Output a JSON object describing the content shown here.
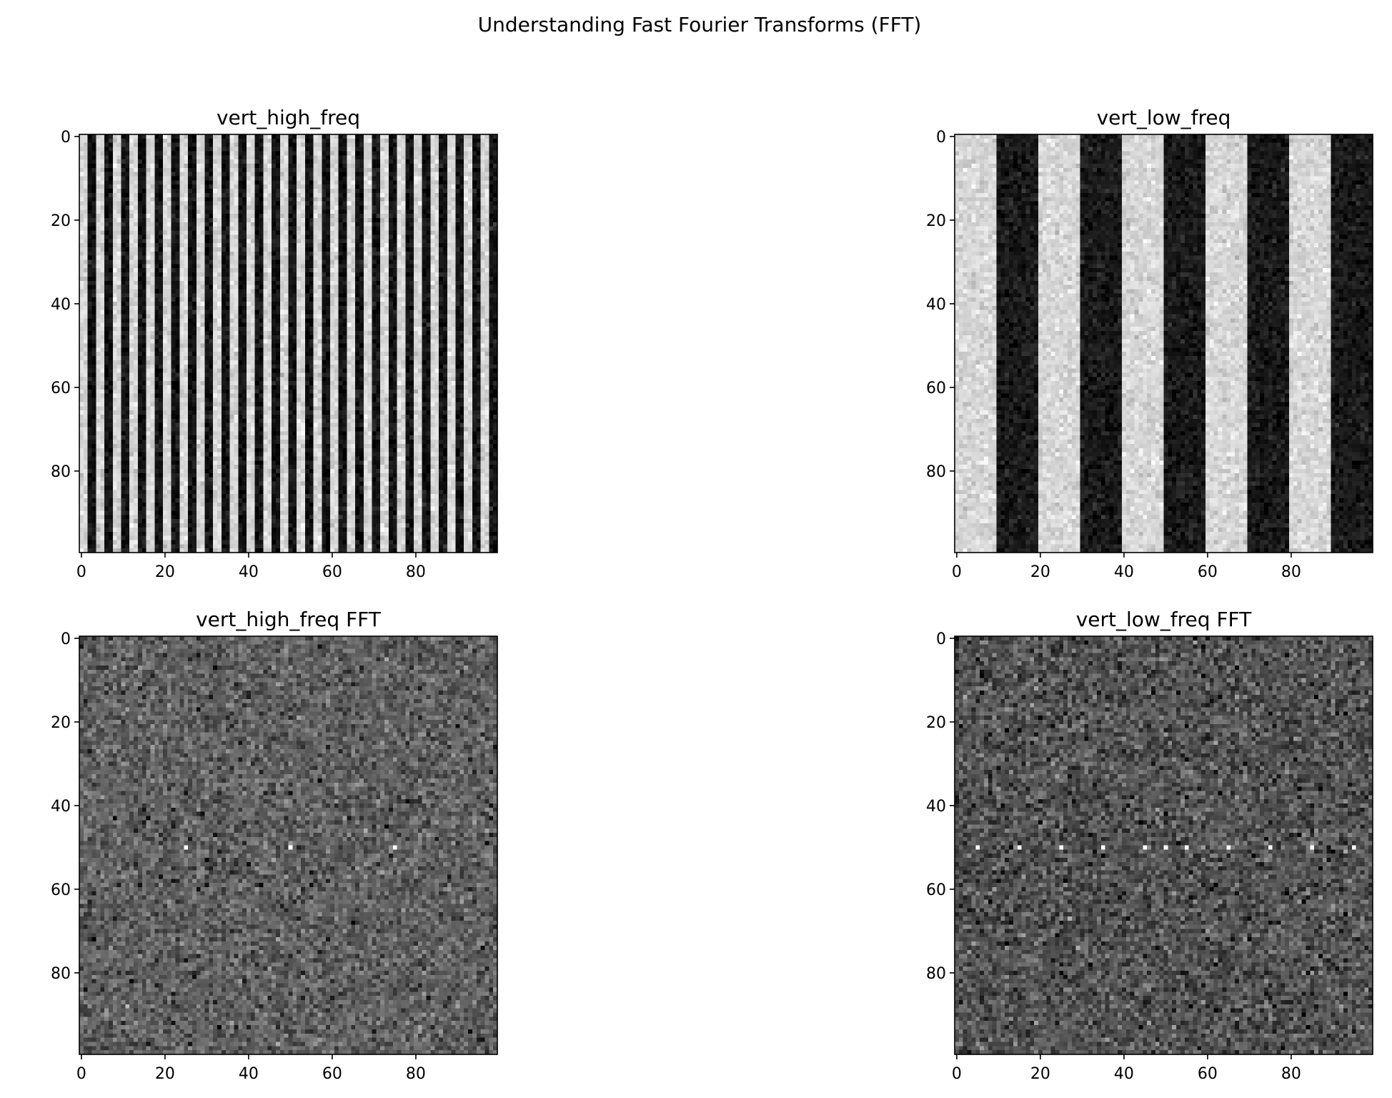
{
  "chart_data": {
    "title": "Understanding Fast Fourier Transforms (FFT)",
    "subplots": [
      {
        "type": "heatmap",
        "title": "vert_high_freq",
        "colormap": "gray",
        "shape": [
          100,
          100
        ],
        "xlim": [
          0,
          99
        ],
        "ylim": [
          99,
          0
        ],
        "xticks": [
          "0",
          "20",
          "40",
          "60",
          "80"
        ],
        "yticks": [
          "0",
          "20",
          "40",
          "60",
          "80"
        ],
        "pattern": {
          "kind": "vertical-stripes",
          "stripe_width": 2,
          "light_value": 0.84,
          "dark_value": 0.08,
          "noise": 0.05
        }
      },
      {
        "type": "heatmap",
        "title": "vert_low_freq",
        "colormap": "gray",
        "shape": [
          100,
          100
        ],
        "xlim": [
          0,
          99
        ],
        "ylim": [
          99,
          0
        ],
        "xticks": [
          "0",
          "20",
          "40",
          "60",
          "80"
        ],
        "yticks": [
          "0",
          "20",
          "40",
          "60",
          "80"
        ],
        "pattern": {
          "kind": "vertical-stripes",
          "stripe_width": 10,
          "light_value": 0.84,
          "dark_value": 0.1,
          "noise": 0.05
        }
      },
      {
        "type": "heatmap",
        "title": "vert_high_freq FFT",
        "colormap": "gray",
        "shape": [
          100,
          100
        ],
        "xlim": [
          0,
          99
        ],
        "ylim": [
          99,
          0
        ],
        "xticks": [
          "0",
          "20",
          "40",
          "60",
          "80"
        ],
        "yticks": [
          "0",
          "20",
          "40",
          "60",
          "80"
        ],
        "pattern": {
          "kind": "fft-noise",
          "base_value": 0.38,
          "noise": 0.09,
          "peak_row": 50,
          "peak_cols": [
            25,
            50,
            75
          ],
          "peak_value": 1.0
        }
      },
      {
        "type": "heatmap",
        "title": "vert_low_freq FFT",
        "colormap": "gray",
        "shape": [
          100,
          100
        ],
        "xlim": [
          0,
          99
        ],
        "ylim": [
          99,
          0
        ],
        "xticks": [
          "0",
          "20",
          "40",
          "60",
          "80"
        ],
        "yticks": [
          "0",
          "20",
          "40",
          "60",
          "80"
        ],
        "pattern": {
          "kind": "fft-noise",
          "base_value": 0.33,
          "noise": 0.1,
          "peak_row": 50,
          "peak_cols": [
            5,
            15,
            25,
            35,
            45,
            50,
            55,
            65,
            75,
            85,
            95
          ],
          "peak_value": 1.0
        }
      }
    ]
  }
}
